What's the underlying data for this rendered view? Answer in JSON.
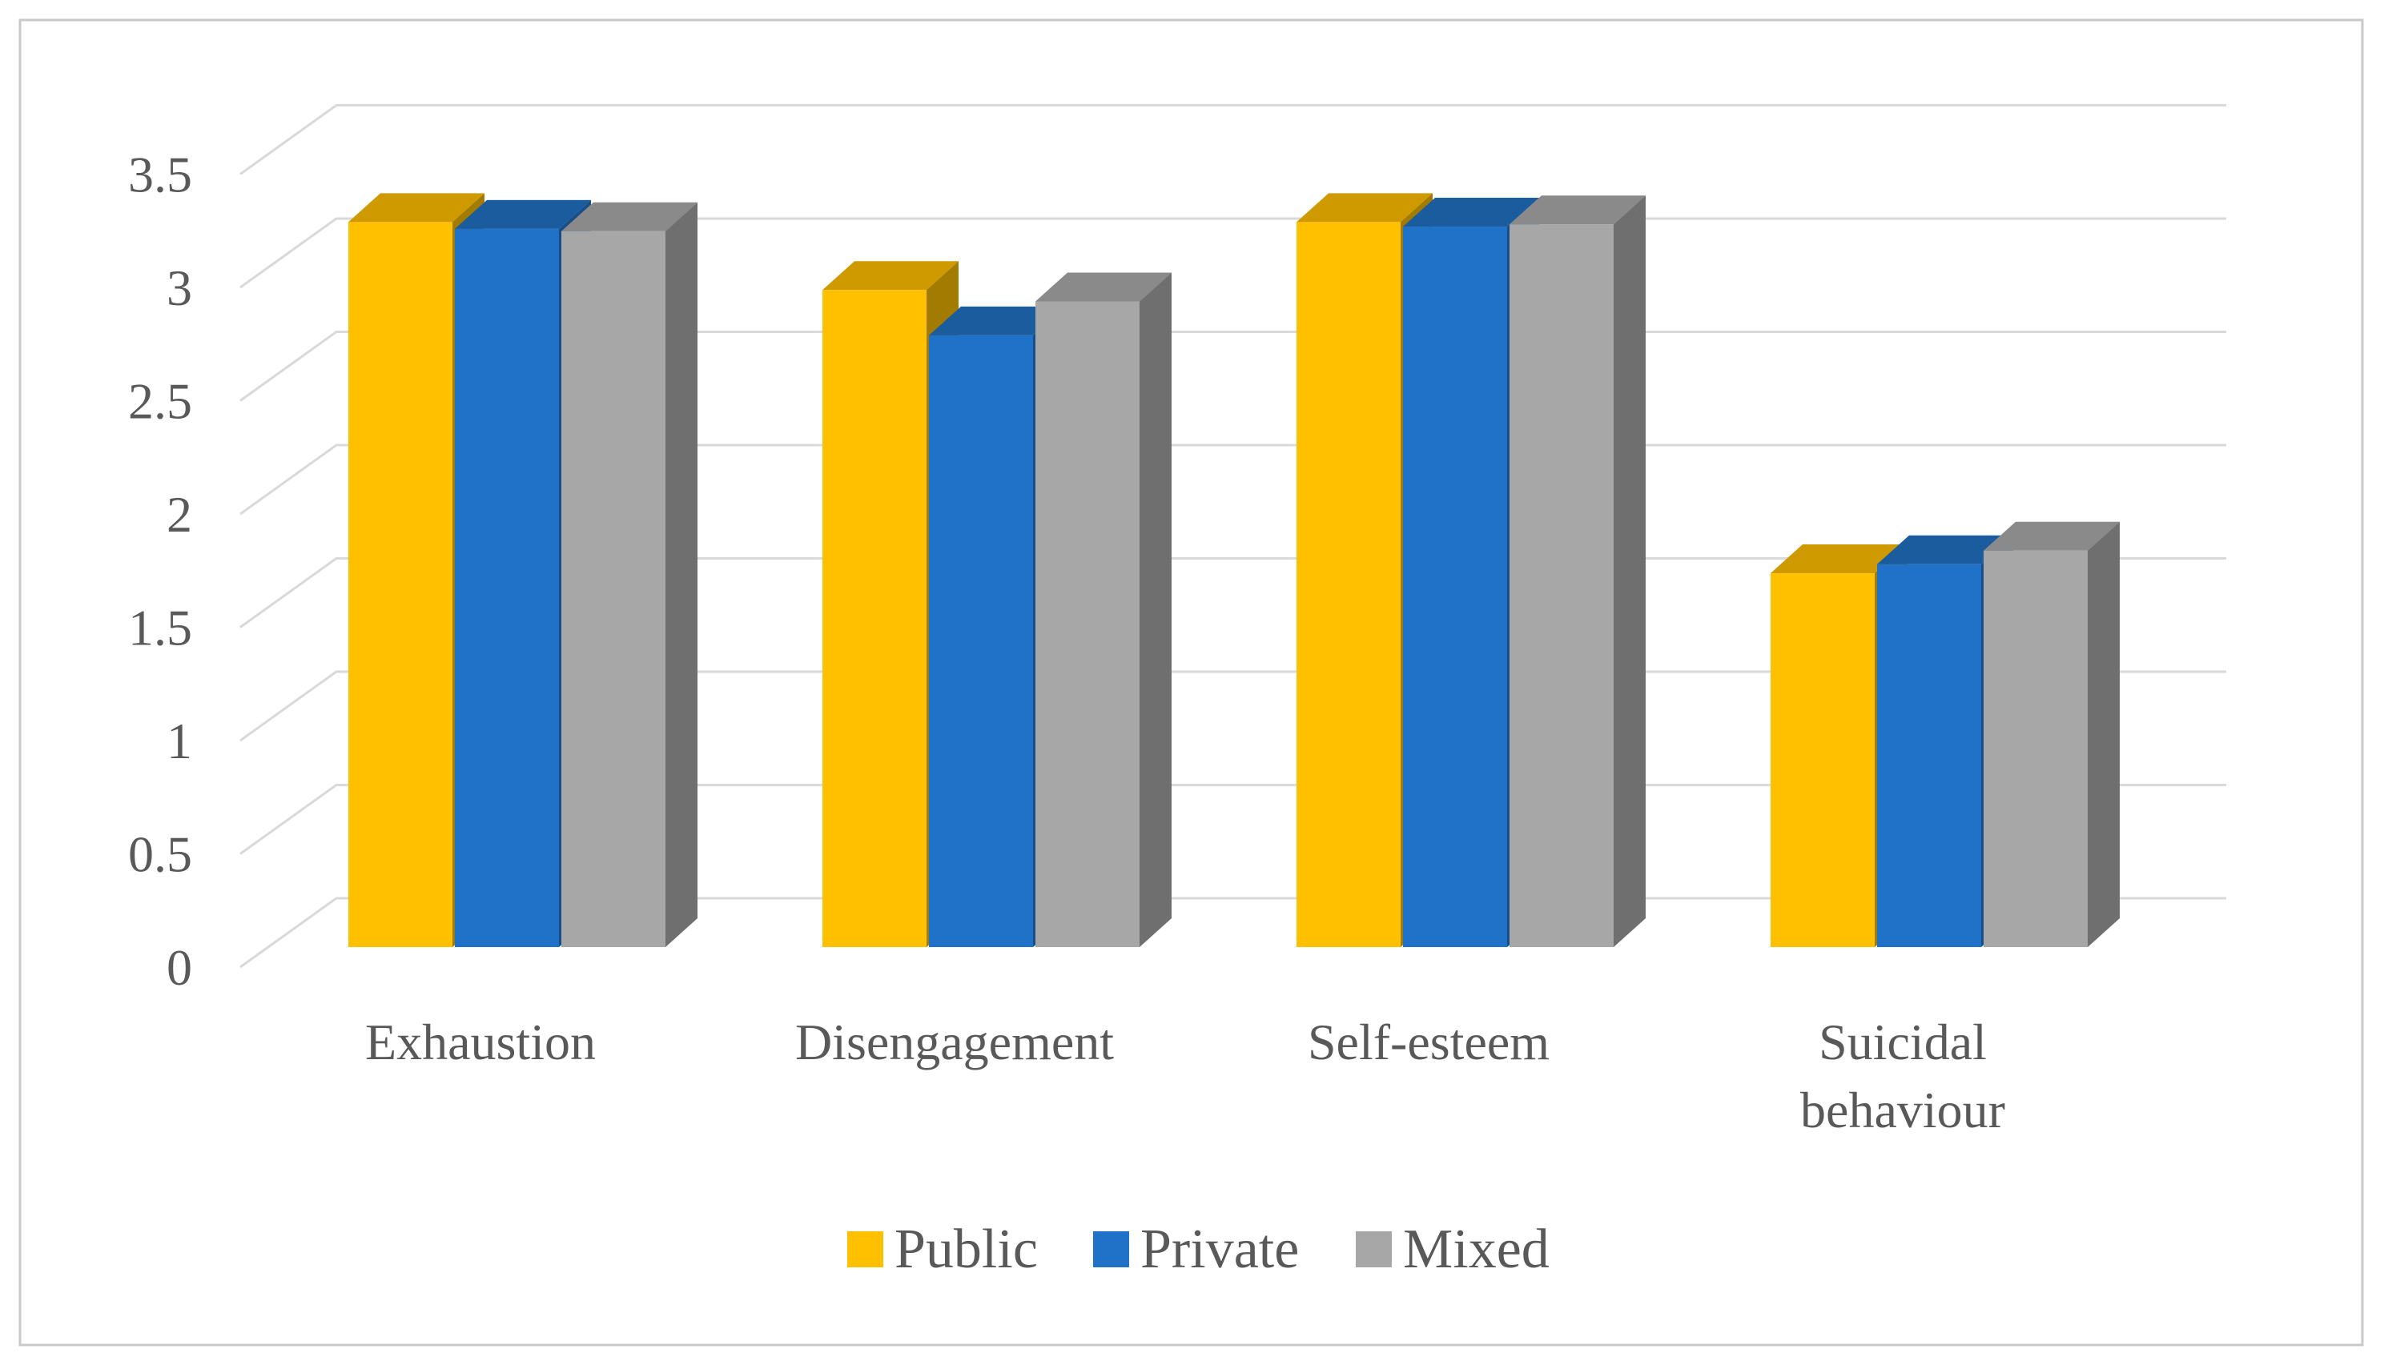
{
  "figure": {
    "background": "#FFFFFF",
    "border_color": "#C9C9C9",
    "text_color": "#595959",
    "gridline_color": "#D9D9D9"
  },
  "chart_data": {
    "type": "bar",
    "projection": "3d",
    "title": "",
    "xlabel": "",
    "ylabel": "",
    "categories": [
      "Exhaustion",
      "Disengagement",
      "Self-esteem",
      "Suicidal behaviour"
    ],
    "category_lines": [
      [
        "Exhaustion"
      ],
      [
        "Disengagement"
      ],
      [
        "Self-esteem"
      ],
      [
        "Suicidal",
        "behaviour"
      ]
    ],
    "series": [
      {
        "name": "Public",
        "values": [
          3.2,
          2.9,
          3.2,
          1.65
        ],
        "color": "#FFC000",
        "color_top": "#CE9A00",
        "color_side": "#A37B00"
      },
      {
        "name": "Private",
        "values": [
          3.17,
          2.7,
          3.18,
          1.69
        ],
        "color": "#1F72C7",
        "color_top": "#1B5C9F",
        "color_side": "#164E87"
      },
      {
        "name": "Mixed",
        "values": [
          3.16,
          2.85,
          3.19,
          1.75
        ],
        "color": "#A7A7A7",
        "color_top": "#8A8A8A",
        "color_side": "#6F6F6F"
      }
    ],
    "yticks": [
      "0",
      "0.5",
      "1",
      "1.5",
      "2",
      "2.5",
      "3",
      "3.5"
    ],
    "ytick_values": [
      0,
      0.5,
      1,
      1.5,
      2,
      2.5,
      3,
      3.5
    ],
    "ylim": [
      0,
      3.5
    ],
    "grid": true,
    "legend_position": "bottom"
  }
}
